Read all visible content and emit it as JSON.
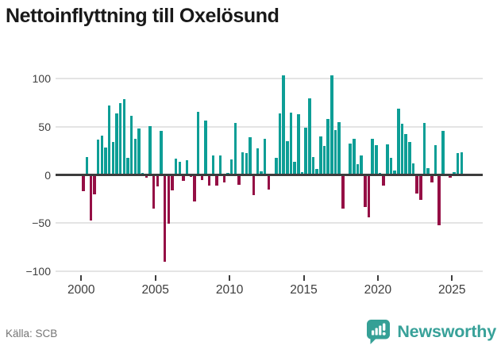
{
  "title": "Nettoinflyttning till Oxelösund",
  "source": "Källa: SCB",
  "branding": {
    "logo_text": "Newsworthy",
    "logo_icon": "bar-chart-speech-bubble-icon"
  },
  "colors": {
    "positive_bar": "#0D9E96",
    "negative_bar": "#950F45",
    "axis": "#3D3D3D",
    "grid": "#E4E4E4",
    "title_text": "#191919",
    "muted_text": "#757575",
    "brand": "#38A199",
    "background": "#FFFFFF"
  },
  "chart_data": {
    "type": "bar",
    "title": "Nettoinflyttning till Oxelösund",
    "xlabel": "",
    "ylabel": "",
    "frequency": "quarterly",
    "start_period": "2000-Q1",
    "end_period": "2025-Q3",
    "values": [
      -17,
      19,
      -47,
      -20,
      37,
      41,
      29,
      72,
      34,
      64,
      75,
      79,
      18,
      62,
      38,
      48,
      2,
      -3,
      51,
      -35,
      -12,
      46,
      -90,
      -51,
      -16,
      17,
      14,
      -6,
      15,
      -2,
      -28,
      66,
      -5,
      57,
      -11,
      20,
      -11,
      20,
      -8,
      2,
      16,
      54,
      -10,
      24,
      23,
      39,
      -21,
      28,
      4,
      38,
      -15,
      1,
      18,
      64,
      104,
      35,
      65,
      14,
      63,
      3,
      49,
      80,
      19,
      6,
      40,
      30,
      58,
      104,
      47,
      55,
      -35,
      0,
      33,
      38,
      11,
      20,
      -33,
      -44,
      38,
      31,
      2,
      -11,
      32,
      18,
      5,
      69,
      53,
      43,
      34,
      12,
      -19,
      -26,
      54,
      7,
      -8,
      31,
      -52,
      46,
      0,
      -3,
      3,
      23,
      24
    ],
    "x_tick_years": [
      2000,
      2005,
      2010,
      2015,
      2020,
      2025
    ],
    "y_ticks": [
      100,
      50,
      0,
      -50,
      -100
    ],
    "y_tick_labels": [
      "100",
      "50",
      "0",
      "−50",
      "−100"
    ],
    "ylim": [
      -110,
      112
    ],
    "grid": true,
    "legend": "none"
  }
}
